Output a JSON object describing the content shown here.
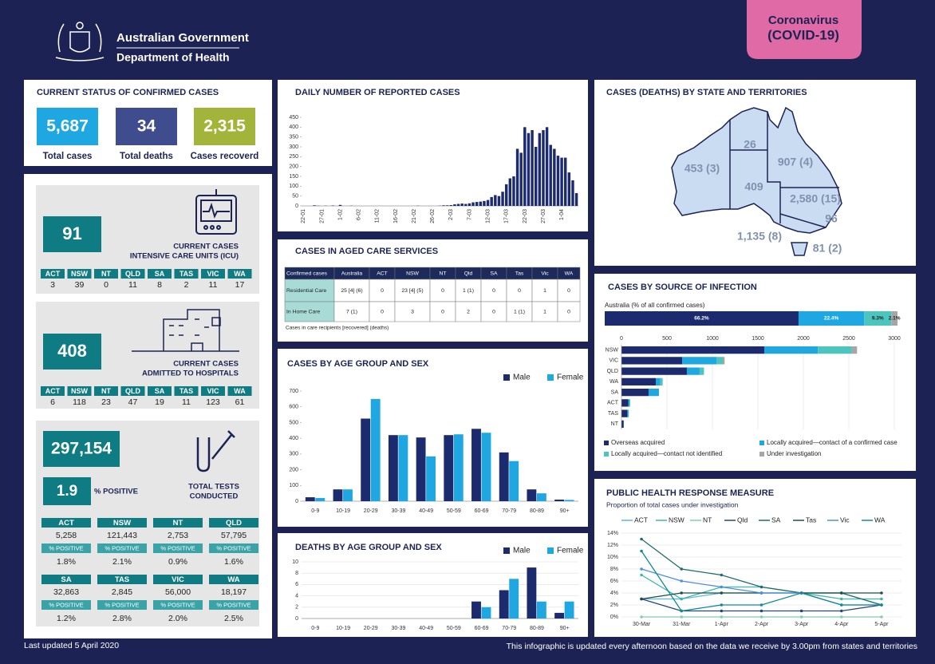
{
  "header": {
    "gov": "Australian Government",
    "dept": "Department of Health",
    "badge1": "Coronavirus",
    "badge2": "(COVID-19)"
  },
  "status": {
    "title": "CURRENT STATUS OF CONFIRMED CASES",
    "tiles": [
      {
        "value": "5,687",
        "label": "Total cases",
        "color": "#1ea7e1"
      },
      {
        "value": "34",
        "label": "Total deaths",
        "color": "#3f4d8e"
      },
      {
        "value": "2,315",
        "label": "Cases recoverd",
        "color": "#a3b43a"
      }
    ]
  },
  "icu": {
    "value": 91,
    "label1": "CURRENT CASES",
    "label2": "INTENSIVE CARE UNITS (ICU)",
    "states": [
      "ACT",
      "NSW",
      "NT",
      "QLD",
      "SA",
      "TAS",
      "VIC",
      "WA"
    ],
    "counts": [
      3,
      39,
      0,
      11,
      8,
      2,
      11,
      17
    ]
  },
  "hospital": {
    "value": 408,
    "label1": "CURRENT CASES",
    "label2": "ADMITTED TO HOSPITALS",
    "states": [
      "ACT",
      "NSW",
      "NT",
      "QLD",
      "SA",
      "TAS",
      "VIC",
      "WA"
    ],
    "counts": [
      6,
      118,
      23,
      47,
      19,
      11,
      123,
      61
    ]
  },
  "tests": {
    "value": "297,154",
    "label1": "TOTAL TESTS",
    "label2": "CONDUCTED",
    "positive": 1.9,
    "positive_label": "% POSITIVE",
    "states": [
      {
        "name": "ACT",
        "tests": "5,258",
        "label": "% POSITIVE",
        "rate": "1.8%"
      },
      {
        "name": "NSW",
        "tests": "121,443",
        "label": "% POSITIVE",
        "rate": "2.1%"
      },
      {
        "name": "NT",
        "tests": "2,753",
        "label": "% POSITIVE",
        "rate": "0.9%"
      },
      {
        "name": "QLD",
        "tests": "57,795",
        "label": "% POSITIVE",
        "rate": "1.6%"
      },
      {
        "name": "SA",
        "tests": "32,863",
        "label": "% POSITIVE",
        "rate": "1.2%"
      },
      {
        "name": "TAS",
        "tests": "2,845",
        "label": "% POSITIVE",
        "rate": "2.8%"
      },
      {
        "name": "VIC",
        "tests": "56,000",
        "label": "% POSITIVE",
        "rate": "2.0%"
      },
      {
        "name": "WA",
        "tests": "18,197",
        "label": "% POSITIVE",
        "rate": "2.5%"
      }
    ]
  },
  "aged_care": {
    "title": "CASES IN AGED CARE SERVICES",
    "header": [
      "Confirmed cases",
      "Australia",
      "ACT",
      "NSW",
      "NT",
      "Qld",
      "SA",
      "Tas",
      "Vic",
      "WA"
    ],
    "rows": [
      [
        "Residential Care",
        "25 [4] (6)",
        "0",
        "23 [4] (5)",
        "0",
        "1 (1)",
        "0",
        "0",
        "1",
        "0"
      ],
      [
        "In Home Care",
        "7 (1)",
        "0",
        "3",
        "0",
        "2",
        "0",
        "1 (1)",
        "1",
        "0"
      ]
    ],
    "note": "Cases in care recipients [recovered] (deaths)"
  },
  "map": {
    "title": "CASES (DEATHS) BY STATE AND TERRITORIES",
    "labels": [
      "453 (3)",
      "26",
      "907 (4)",
      "409",
      "2,580 (15)",
      "96",
      "1,135 (8)",
      "81 (2)"
    ]
  },
  "footer": {
    "updated": "Last updated 5 April 2020",
    "note": "This infographic is updated every afternoon based on the data we receive by 3.00pm from states and territories"
  },
  "chart_data": [
    {
      "type": "bar",
      "title": "DAILY NUMBER OF REPORTED CASES",
      "color": "#1c2a6e",
      "categories": [
        "22-01",
        null,
        null,
        null,
        null,
        "27-01",
        null,
        null,
        null,
        null,
        "1-02",
        null,
        null,
        null,
        null,
        "6-02",
        null,
        null,
        null,
        null,
        "11-02",
        null,
        null,
        null,
        null,
        "16-02",
        null,
        null,
        null,
        null,
        "21-02",
        null,
        null,
        null,
        null,
        "26-02",
        null,
        null,
        null,
        null,
        "2-03",
        null,
        null,
        null,
        null,
        "7-03",
        null,
        null,
        null,
        null,
        "12-03",
        null,
        null,
        null,
        null,
        "17-03",
        null,
        null,
        null,
        null,
        "22-03",
        null,
        null,
        null,
        null,
        "27-03",
        null,
        null,
        null,
        null,
        "1-04",
        null,
        null,
        null,
        null
      ],
      "values": [
        0,
        0,
        0,
        3,
        1,
        0,
        1,
        0,
        2,
        0,
        5,
        0,
        0,
        1,
        0,
        0,
        0,
        0,
        0,
        0,
        0,
        0,
        0,
        0,
        0,
        0,
        0,
        0,
        0,
        0,
        0,
        1,
        0,
        0,
        0,
        0,
        0,
        1,
        3,
        3,
        4,
        8,
        10,
        12,
        10,
        13,
        18,
        20,
        22,
        25,
        30,
        45,
        55,
        50,
        72,
        110,
        140,
        150,
        290,
        270,
        400,
        370,
        385,
        300,
        370,
        385,
        400,
        310,
        290,
        255,
        245,
        245,
        170,
        130,
        65
      ],
      "ylim": [
        0,
        450
      ],
      "yticks": [
        0,
        50,
        100,
        150,
        200,
        250,
        300,
        350,
        400,
        450
      ],
      "grid": false
    },
    {
      "type": "bar",
      "title": "CASES BY AGE GROUP AND SEX",
      "legend": "top-right",
      "grid": false,
      "categories": [
        "0-9",
        "10-19",
        "20-29",
        "30-39",
        "40-49",
        "50-59",
        "60-69",
        "70-79",
        "80-89",
        "90+"
      ],
      "series": [
        {
          "name": "Male",
          "color": "#1c2a6e",
          "values": [
            25,
            75,
            525,
            420,
            405,
            420,
            460,
            310,
            75,
            10
          ]
        },
        {
          "name": "Female",
          "color": "#1ea7e1",
          "values": [
            20,
            75,
            650,
            420,
            285,
            425,
            435,
            255,
            50,
            8
          ]
        }
      ],
      "ylim": [
        0,
        700
      ],
      "yticks": [
        0,
        100,
        200,
        300,
        400,
        500,
        600,
        700
      ]
    },
    {
      "type": "bar",
      "title": "DEATHS BY AGE GROUP AND SEX",
      "legend": "top-right",
      "grid": true,
      "categories": [
        "0-9",
        "10-19",
        "20-29",
        "30-39",
        "40-49",
        "50-59",
        "60-69",
        "70-79",
        "80-89",
        "90+"
      ],
      "series": [
        {
          "name": "Male",
          "color": "#1c2a6e",
          "values": [
            0,
            0,
            0,
            0,
            0,
            0,
            3,
            5,
            9,
            1
          ]
        },
        {
          "name": "Female",
          "color": "#1ea7e1",
          "values": [
            0,
            0,
            0,
            0,
            0,
            0,
            2,
            7,
            3,
            3
          ]
        }
      ],
      "ylim": [
        0,
        10
      ],
      "yticks": [
        0,
        2,
        4,
        6,
        8,
        10
      ]
    },
    {
      "type": "stacked-hbar",
      "title": "CASES BY SOURCE OF INFECTION",
      "subtitle": "Australia (% of all confirmed cases)",
      "values": [
        66.2,
        22.4,
        9.3,
        2.1
      ],
      "value_labels": [
        "66.2%",
        "22.4%",
        "9.3%",
        "2.1%"
      ],
      "colors": [
        "#1c2a6e",
        "#1ea7e1",
        "#4dc5bf",
        "#a6a6a6"
      ],
      "xlim": [
        0,
        100
      ]
    },
    {
      "type": "stacked-hbar",
      "legend": "bottom",
      "categories": [
        "NSW",
        "VIC",
        "QLD",
        "WA",
        "SA",
        "ACT",
        "TAS",
        "NT"
      ],
      "series": [
        {
          "name": "Overseas acquired",
          "color": "#1c2a6e",
          "values": [
            1570,
            667,
            719,
            377,
            298,
            75,
            65,
            22
          ]
        },
        {
          "name": "Locally acquired—contact of a confirmed case",
          "color": "#1ea7e1",
          "values": [
            590,
            377,
            140,
            50,
            114,
            15,
            10,
            4
          ]
        },
        {
          "name": "Locally acquired—contact not identified",
          "color": "#4dc5bf",
          "values": [
            370,
            70,
            48,
            26,
            0,
            6,
            6,
            0
          ]
        },
        {
          "name": "Under investigation",
          "color": "#a6a6a6",
          "values": [
            60,
            20,
            0,
            0,
            0,
            0,
            0,
            0
          ]
        }
      ],
      "xlim": [
        0,
        3000
      ],
      "xticks": [
        0,
        500,
        1000,
        1500,
        2000,
        2500,
        3000
      ],
      "grid": true
    },
    {
      "type": "line",
      "title": "PUBLIC HEALTH RESPONSE MEASURE",
      "subtitle": "Proportion of total cases under investigation",
      "legend": "top",
      "grid": true,
      "categories": [
        "30-Mar",
        "31-Mar",
        "1-Apr",
        "2-Apr",
        "3-Apr",
        "4-Apr",
        "5-Apr"
      ],
      "series": [
        {
          "name": "ACT",
          "color": "#5fb4e6",
          "values": [
            3,
            3,
            4,
            4,
            4,
            4,
            2
          ]
        },
        {
          "name": "NSW",
          "color": "#3cb8a8",
          "values": [
            7,
            3,
            5,
            5,
            4,
            3,
            3
          ]
        },
        {
          "name": "NT",
          "color": "#7fcfb0",
          "values": [
            0,
            0,
            0,
            0,
            0,
            0,
            0
          ]
        },
        {
          "name": "Qld",
          "color": "#27467f",
          "values": [
            3,
            1,
            1,
            1,
            1,
            1,
            2
          ]
        },
        {
          "name": "SA",
          "color": "#1f6d6d",
          "values": [
            13,
            8,
            7,
            5,
            4,
            4,
            2
          ]
        },
        {
          "name": "Tas",
          "color": "#1d4f4a",
          "values": [
            3,
            4,
            4,
            4,
            4,
            4,
            4
          ]
        },
        {
          "name": "Vic",
          "color": "#4a8fe0",
          "values": [
            8,
            6,
            5,
            4,
            4,
            2,
            2
          ]
        },
        {
          "name": "WA",
          "color": "#128a92",
          "values": [
            11,
            1,
            2,
            2,
            4,
            2,
            2
          ]
        }
      ],
      "ylim": [
        0,
        14
      ],
      "yticks": [
        {
          "value": 0,
          "label": "0%"
        },
        {
          "value": 2,
          "label": "2%"
        },
        {
          "value": 4,
          "label": "4%"
        },
        {
          "value": 6,
          "label": "6%"
        },
        {
          "value": 8,
          "label": "8%"
        },
        {
          "value": 10,
          "label": "10%"
        },
        {
          "value": 12,
          "label": "12%"
        },
        {
          "value": 14,
          "label": "14%"
        }
      ]
    }
  ]
}
